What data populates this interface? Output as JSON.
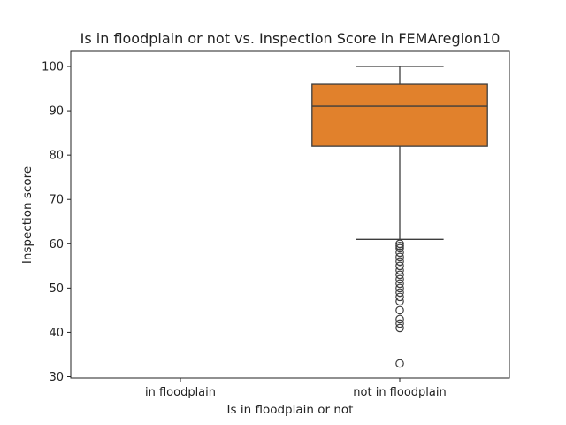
{
  "chart_data": {
    "type": "box",
    "title": "Is in floodplain or not vs. Inspection Score in FEMAregion10",
    "xlabel": "Is in floodplain or not",
    "ylabel": "Inspection score",
    "ylim": [
      29.7,
      103.4
    ],
    "yticks": [
      30,
      40,
      50,
      60,
      70,
      80,
      90,
      100
    ],
    "categories": [
      "in floodplain",
      "not in floodplain"
    ],
    "boxes": [
      {
        "category": "in floodplain",
        "empty": true
      },
      {
        "category": "not in floodplain",
        "whisker_low": 61,
        "q1": 82,
        "median": 91,
        "q3": 96,
        "whisker_high": 100,
        "outliers": [
          60,
          59.5,
          59,
          58,
          57,
          56,
          55,
          54,
          53,
          52,
          51,
          50,
          49,
          48,
          47,
          45,
          43,
          42,
          41,
          33
        ],
        "color": "#e1812c"
      }
    ],
    "grid": false,
    "legend": "none"
  }
}
